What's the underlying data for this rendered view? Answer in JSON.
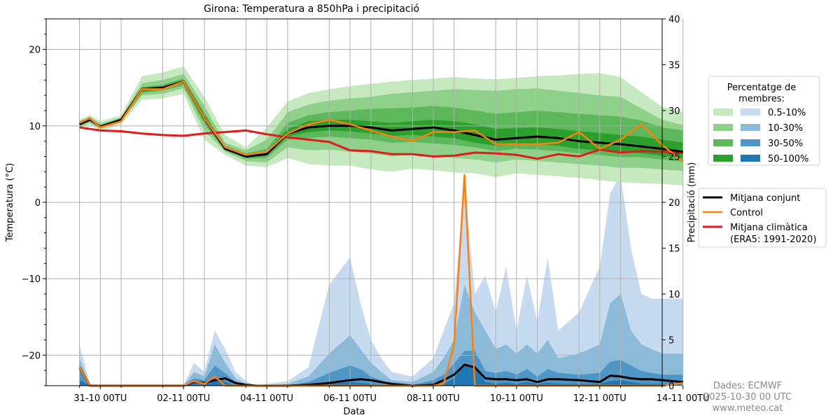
{
  "credits": [
    "Dades: ECMWF",
    "2025-10-30 00 UTC",
    "www.meteo.cat"
  ],
  "colors": {
    "temp_bands": [
      "#c7e9c0",
      "#8fd18a",
      "#5cb85a",
      "#2ca02c"
    ],
    "precip_bands": [
      "#c6dbef",
      "#8cbad9",
      "#4e96c6",
      "#1f77b4"
    ],
    "mean": "#000000",
    "control": "#ff7f0e",
    "climatology": "#e31a1c"
  },
  "chart_data": {
    "type": "area",
    "title": "Girona: Temperatura a 850hPa i precipitació",
    "xlabel": "Data",
    "ylabel_left": "Temperatura (°C)",
    "ylabel_right": "Precipitació (mm)",
    "x_range": [
      -0.3,
      14.5
    ],
    "ylim_left": [
      -24,
      24
    ],
    "ylim_right": [
      0,
      40
    ],
    "y_ticks_left": [
      -20,
      -10,
      0,
      10,
      20
    ],
    "y_tick_labels_left": [
      "−20",
      "−10",
      "0",
      "10",
      "20"
    ],
    "y_ticks_right": [
      0,
      5,
      10,
      15,
      20,
      25,
      30,
      35,
      40
    ],
    "x_ticks": [
      1,
      3,
      5,
      7,
      9,
      11,
      13,
      15
    ],
    "x_tick_labels": [
      "31-10 00TU",
      "02-11 00TU",
      "04-11 00TU",
      "06-11 00TU",
      "08-11 00TU",
      "10-11 00TU",
      "12-11 00TU",
      "14-11 00TU"
    ],
    "grid": true,
    "legend": {
      "title": "Percentatge de\nmembres:",
      "band_labels": [
        "0.5-10%",
        "10-30%",
        "30-50%",
        "50-100%"
      ],
      "line_labels": [
        "Mitjana conjunt",
        "Control",
        "Mitjana climàtica\n(ERA5: 1991-2020)"
      ]
    },
    "temperature": {
      "x": [
        0.5,
        0.75,
        1,
        1.5,
        2,
        2.5,
        3,
        3.5,
        4,
        4.5,
        5,
        5.5,
        6,
        6.5,
        7,
        7.5,
        8,
        8.5,
        9,
        9.5,
        10,
        10.5,
        11,
        11.5,
        12,
        12.5,
        13,
        13.5,
        14,
        14.5,
        15
      ],
      "mean": [
        10.2,
        10.8,
        9.9,
        10.8,
        14.8,
        15,
        15.8,
        11,
        7,
        6,
        6.3,
        9,
        9.8,
        10,
        10,
        9.8,
        9.4,
        9.6,
        9.8,
        9.4,
        8.8,
        8.2,
        8.4,
        8.6,
        8.4,
        8,
        7.8,
        7.6,
        7.3,
        7,
        6.6
      ],
      "control": [
        10.4,
        11,
        9.8,
        10.6,
        14.8,
        14.8,
        15.8,
        11,
        7.2,
        6.2,
        6.6,
        9,
        10.2,
        10.8,
        10.2,
        9.4,
        8.6,
        8,
        9.2,
        9.2,
        9.4,
        7.6,
        7.6,
        7.6,
        7.8,
        9.2,
        7,
        8.2,
        10.2,
        7.5,
        5.3
      ],
      "climatology": [
        9.8,
        9.6,
        9.4,
        9.3,
        9,
        8.8,
        8.7,
        9,
        9.2,
        9.4,
        8.9,
        8.5,
        8.2,
        7.9,
        6.8,
        6.7,
        6.3,
        6.3,
        6.0,
        6.1,
        6.5,
        6.4,
        6.2,
        5.7,
        6.3,
        6.0,
        6.9,
        6.5,
        6.7,
        6.6,
        6.5
      ],
      "bands": [
        {
          "label": "0.5-10%",
          "low": [
            9.6,
            10.2,
            9.3,
            10.2,
            13.4,
            13.6,
            14.2,
            8.2,
            6.2,
            4.8,
            4.6,
            5.8,
            5,
            4.8,
            4.8,
            4.3,
            4,
            4.4,
            4.2,
            3.9,
            3.8,
            3.3,
            3.8,
            3.6,
            3.4,
            3.2,
            2.9,
            2.6,
            2.5,
            2.4,
            2.2
          ],
          "high": [
            10.8,
            11.4,
            10.6,
            11.4,
            16.5,
            17,
            17.8,
            13.8,
            8.8,
            7.2,
            9.8,
            13.2,
            14.3,
            14.8,
            15.2,
            15.5,
            15.8,
            16,
            16.2,
            16.4,
            16.2,
            16.1,
            16.3,
            16.5,
            16.6,
            16.8,
            16.9,
            16.4,
            14.4,
            12.5,
            11.8
          ]
        },
        {
          "label": "10-30%",
          "low": [
            9.8,
            10.4,
            9.6,
            10.5,
            14,
            14.2,
            14.9,
            9.4,
            6.6,
            5.4,
            5.2,
            7.2,
            6.8,
            6.9,
            6.6,
            6.4,
            6,
            6.3,
            6,
            5.8,
            5.6,
            5.2,
            5.6,
            5.4,
            5.2,
            5,
            4.8,
            4.5,
            4.5,
            4.3,
            4.1
          ],
          "high": [
            10.6,
            11.2,
            10.3,
            11.1,
            15.6,
            16,
            16.8,
            12.6,
            7.8,
            6.8,
            8.2,
            11.8,
            12.8,
            13.3,
            13.6,
            13.8,
            14.2,
            14.4,
            14.6,
            14.8,
            14.7,
            14.6,
            14.8,
            14.9,
            14.6,
            14.3,
            14,
            13.8,
            12.3,
            10.8,
            10.1
          ]
        },
        {
          "label": "30-50%",
          "low": [
            10,
            10.6,
            9.8,
            10.6,
            14.3,
            14.6,
            15.3,
            10.2,
            6.8,
            5.7,
            5.8,
            8.2,
            8.4,
            8.6,
            8.4,
            8.2,
            7.8,
            7.9,
            7.7,
            7.5,
            7.2,
            6.7,
            7,
            6.9,
            6.7,
            6.4,
            6.2,
            5.9,
            5.9,
            5.6,
            5.3
          ],
          "high": [
            10.4,
            11,
            10.1,
            11,
            15.1,
            15.4,
            16.2,
            11.8,
            7.4,
            6.4,
            7,
            10.4,
            11.4,
            11.8,
            12,
            12.2,
            12.3,
            12.4,
            12.6,
            12.4,
            12,
            11.6,
            11.8,
            12,
            11.8,
            11.6,
            11.4,
            11.2,
            10.7,
            9.8,
            9.4
          ]
        },
        {
          "label": "50-100%",
          "low": [
            10.1,
            10.7,
            9.8,
            10.7,
            14.5,
            14.8,
            15.6,
            10.6,
            6.9,
            5.8,
            6.1,
            8.6,
            9.2,
            9.4,
            9.3,
            9,
            8.7,
            8.8,
            8.6,
            8.4,
            7.8,
            7.4,
            7.6,
            7.6,
            7.4,
            7,
            6.8,
            6.6,
            6.4,
            6.1,
            5.8
          ],
          "high": [
            10.3,
            10.9,
            10,
            10.9,
            15,
            15.2,
            16,
            11.4,
            7.2,
            6.2,
            6.6,
            9.6,
            10.6,
            10.8,
            10.8,
            10.6,
            10.4,
            10.6,
            10.8,
            10.6,
            10.2,
            9.6,
            9.7,
            9.8,
            9.6,
            9.3,
            9.1,
            8.8,
            8.6,
            8.2,
            7.8
          ]
        }
      ]
    },
    "precipitation": {
      "x": [
        0.5,
        0.75,
        1,
        1.5,
        2,
        2.5,
        3,
        3.25,
        3.5,
        3.75,
        4,
        4.25,
        4.5,
        4.75,
        5,
        5.5,
        6,
        6.5,
        7,
        7.25,
        7.5,
        7.75,
        8,
        8.5,
        9,
        9.25,
        9.5,
        9.75,
        10,
        10.25,
        10.5,
        10.75,
        11,
        11.25,
        11.5,
        11.75,
        12,
        12.5,
        13,
        13.25,
        13.5,
        13.75,
        14,
        14.25,
        14.5,
        15
      ],
      "mean": [
        2,
        0,
        0,
        0,
        0,
        0,
        0,
        0.4,
        0.3,
        0.6,
        0.8,
        0.3,
        0.1,
        0,
        0,
        0,
        0.1,
        0.3,
        0.6,
        0.7,
        0.6,
        0.4,
        0.2,
        0,
        0.1,
        0.6,
        1.2,
        2.3,
        2,
        0.8,
        0.7,
        0.7,
        0.6,
        0.7,
        0.4,
        0.7,
        0.7,
        0.6,
        0.4,
        1.1,
        1,
        0.8,
        0.7,
        0.7,
        0.6,
        0.4
      ],
      "control": [
        2,
        0,
        0,
        0,
        0,
        0,
        0,
        0.5,
        0.2,
        1,
        0,
        0,
        0,
        0,
        0,
        0,
        0,
        0,
        0,
        0,
        0,
        0,
        0,
        0,
        0,
        0.2,
        4.5,
        23,
        0,
        0,
        0,
        0,
        0,
        0,
        0,
        0,
        0,
        0,
        0,
        0,
        0,
        0,
        0,
        0,
        0,
        0.3
      ],
      "bands": [
        {
          "label": "0.5-10%",
          "low": [
            0,
            0,
            0,
            0,
            0,
            0,
            0,
            0,
            0,
            0,
            0,
            0,
            0,
            0,
            0,
            0,
            0,
            0,
            0,
            0,
            0,
            0,
            0,
            0,
            0,
            0,
            0,
            0,
            0,
            0,
            0,
            0,
            0,
            0,
            0,
            0,
            0,
            0,
            0,
            0,
            0,
            0,
            0,
            0,
            0,
            0
          ],
          "high": [
            4.5,
            0.2,
            0,
            0,
            0,
            0,
            0,
            2.5,
            1.5,
            6,
            4,
            1.5,
            0.5,
            0,
            0.2,
            0.5,
            2,
            11,
            14,
            9,
            5,
            3,
            1.5,
            1,
            3,
            6,
            9,
            22,
            10,
            12,
            8,
            13,
            6,
            12,
            7,
            14,
            6,
            8,
            13,
            21,
            23,
            15,
            10,
            9.5,
            9.5,
            9.5
          ]
        },
        {
          "label": "10-30%",
          "low": [
            0,
            0,
            0,
            0,
            0,
            0,
            0,
            0,
            0,
            0,
            0,
            0,
            0,
            0,
            0,
            0,
            0,
            0,
            0,
            0,
            0,
            0,
            0,
            0,
            0,
            0,
            0,
            0,
            0,
            0,
            0,
            0,
            0,
            0,
            0,
            0,
            0,
            0,
            0,
            0,
            0,
            0,
            0,
            0,
            0,
            0
          ],
          "high": [
            3,
            0.1,
            0,
            0,
            0,
            0,
            0,
            1.5,
            1,
            4.5,
            2.5,
            0.8,
            0.2,
            0,
            0,
            0.2,
            1,
            3.5,
            5.5,
            4,
            2.5,
            1.5,
            0.6,
            0.4,
            1.5,
            3,
            5,
            11,
            8,
            6,
            4,
            4.5,
            3.5,
            4.5,
            3.5,
            5,
            3,
            3.5,
            4.5,
            9,
            10,
            6,
            4.5,
            4,
            3.5,
            3.5
          ]
        },
        {
          "label": "30-50%",
          "low": [
            0,
            0,
            0,
            0,
            0,
            0,
            0,
            0,
            0,
            0,
            0,
            0,
            0,
            0,
            0,
            0,
            0,
            0,
            0,
            0,
            0,
            0,
            0,
            0,
            0,
            0,
            0,
            0,
            0,
            0,
            0,
            0,
            0,
            0,
            0,
            0,
            0,
            0,
            0,
            0,
            0,
            0,
            0,
            0,
            0,
            0
          ],
          "high": [
            2,
            0,
            0,
            0,
            0,
            0,
            0,
            0.8,
            0.6,
            2.2,
            1.4,
            0.4,
            0,
            0,
            0,
            0,
            0.4,
            1.4,
            2.2,
            1.8,
            1,
            0.6,
            0.2,
            0.1,
            0.6,
            1.2,
            2.4,
            3.8,
            3.8,
            1.6,
            1.4,
            1.6,
            1.2,
            1.8,
            1,
            1.8,
            1.4,
            1.2,
            1.4,
            2.6,
            2.8,
            2.2,
            1.6,
            1.4,
            1.2,
            1.2
          ]
        },
        {
          "label": "50-100%",
          "low": [
            0,
            0,
            0,
            0,
            0,
            0,
            0,
            0,
            0,
            0,
            0,
            0,
            0,
            0,
            0,
            0,
            0,
            0,
            0,
            0,
            0,
            0,
            0,
            0,
            0,
            0,
            0,
            0,
            0,
            0,
            0,
            0,
            0,
            0,
            0,
            0,
            0,
            0,
            0,
            0,
            0,
            0,
            0,
            0,
            0,
            0
          ],
          "high": [
            0.6,
            0,
            0,
            0,
            0,
            0,
            0,
            0.2,
            0.1,
            0.8,
            0.4,
            0,
            0,
            0,
            0,
            0,
            0,
            0.2,
            0.4,
            0.3,
            0.2,
            0,
            0,
            0,
            0,
            0.2,
            0.8,
            2.4,
            2,
            0.4,
            0.2,
            0.3,
            0.2,
            0.4,
            0.2,
            0.3,
            0.2,
            0.2,
            0.2,
            0.5,
            0.6,
            0.4,
            0.2,
            0.2,
            0.2,
            0.1
          ]
        }
      ]
    }
  }
}
